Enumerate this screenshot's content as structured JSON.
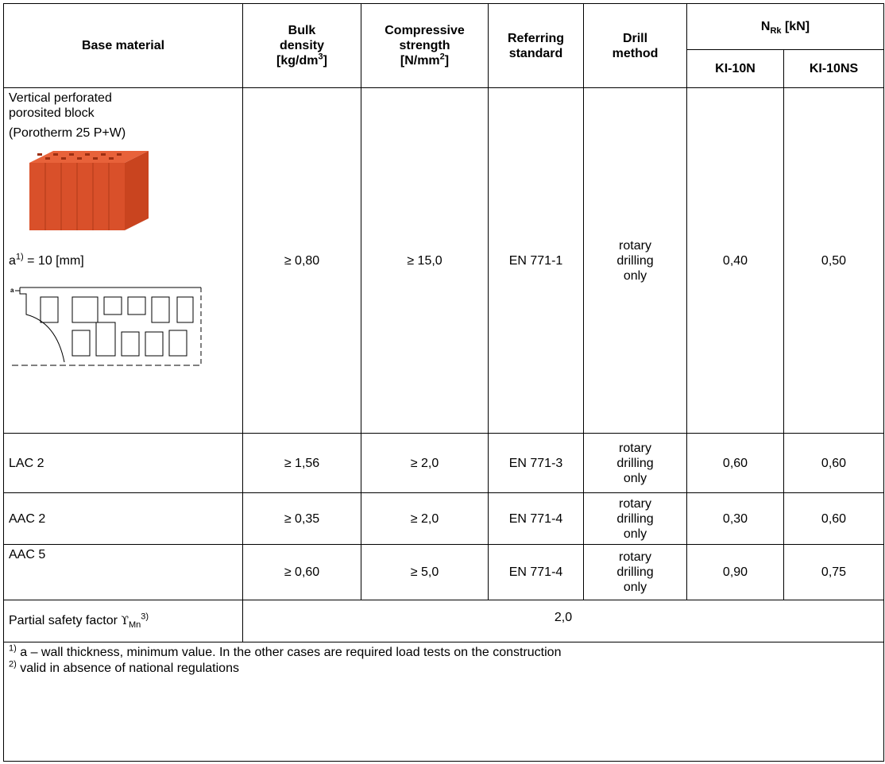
{
  "header": {
    "base_material": "Base material",
    "bulk_density": {
      "text": "Bulk density",
      "unit": "[kg/dm",
      "sup": "3",
      "unit_end": "]"
    },
    "compressive_strength": {
      "text": "Compressive strength",
      "unit": "[N/mm",
      "sup": "2",
      "unit_end": "]"
    },
    "referring_standard": "Referring standard",
    "drill_method": "Drill method",
    "nrk": {
      "symbol": "N",
      "sub": "Rk",
      "unit": " [kN]"
    },
    "columns": [
      "KI-10N",
      "KI-10NS"
    ]
  },
  "rows": [
    {
      "base_material": {
        "name": "Vertical perforated porosited block",
        "product": "(Porotherm 25 P+W)",
        "note": {
          "pre": "a",
          "sup": "1)",
          "post": " = 10 [mm]"
        }
      },
      "bulk_density": "≥ 0,80",
      "compressive_strength": "≥ 15,0",
      "referring_standard": "EN 771-1",
      "drill_method": "rotary drilling only",
      "loads": [
        "0,40",
        "0,50"
      ]
    },
    {
      "base_material": {
        "name": "LAC 2"
      },
      "bulk_density": "≥ 1,56",
      "compressive_strength": "≥ 2,0",
      "referring_standard": "EN 771-3",
      "drill_method": "rotary drilling only",
      "loads": [
        "0,60",
        "0,60"
      ]
    },
    {
      "base_material": {
        "name": "AAC 2"
      },
      "bulk_density": "≥ 0,35",
      "compressive_strength": "≥ 2,0",
      "referring_standard": "EN 771-4",
      "drill_method": "rotary drilling only",
      "loads": [
        "0,30",
        "0,60"
      ]
    },
    {
      "base_material": {
        "name": "AAC 5"
      },
      "bulk_density": "≥ 0,60",
      "compressive_strength": "≥ 5,0",
      "referring_standard": "EN 771-4",
      "drill_method": "rotary drilling only",
      "loads": [
        "0,90",
        "0,75"
      ]
    }
  ],
  "safety": {
    "label": "Partial safety factor ",
    "symbol": "ϒ",
    "sub": "Mn",
    "sup": "3)",
    "value": "2,0"
  },
  "footnotes": [
    {
      "sup": "1)",
      "text": " a – wall thickness, minimum value. In the other cases are required load tests on the construction"
    },
    {
      "sup": "2)",
      "text": " valid in absence of national regulations"
    }
  ]
}
